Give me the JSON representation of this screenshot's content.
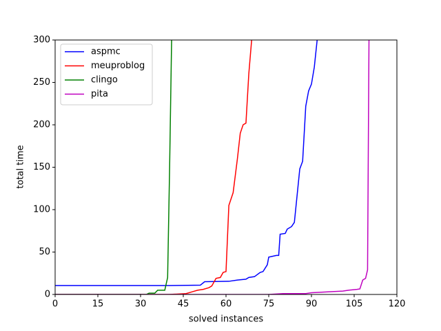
{
  "chart_data": {
    "type": "line",
    "xlabel": "solved instances",
    "ylabel": "total time",
    "xlim": [
      0,
      120
    ],
    "xticks": [
      0,
      15,
      30,
      45,
      60,
      75,
      90,
      105,
      120
    ],
    "ylim": [
      0,
      300
    ],
    "yticks": [
      0,
      50,
      100,
      150,
      200,
      250,
      300
    ],
    "legend": "upper left",
    "series": [
      {
        "name": "aspmc",
        "color": "#0000ff",
        "x": [
          0,
          20,
          40,
          51,
          52.5,
          61,
          64,
          67,
          68,
          70,
          72,
          73,
          74.5,
          75,
          77.7,
          78.5,
          79,
          80.8,
          81.5,
          83,
          84,
          85.9,
          86.9,
          88,
          89,
          90,
          91,
          92
        ],
        "values": [
          10.5,
          10.5,
          10.5,
          11,
          15,
          15.5,
          17,
          18,
          20,
          21,
          26,
          27,
          35,
          44,
          46,
          46,
          71,
          72,
          77,
          80,
          85,
          148,
          157,
          222,
          240,
          248,
          268,
          300
        ]
      },
      {
        "name": "meuproblog",
        "color": "#ff0000",
        "x": [
          0,
          40,
          46,
          48,
          50,
          52,
          54,
          55,
          56.5,
          58,
          59,
          60,
          61,
          62.5,
          64,
          65,
          66,
          67,
          68,
          69
        ],
        "values": [
          0,
          0,
          1,
          3,
          5,
          6,
          8,
          10,
          19,
          20,
          26,
          27,
          105,
          120,
          160,
          190,
          200,
          202,
          260,
          300
        ]
      },
      {
        "name": "clingo",
        "color": "#008000",
        "x": [
          0,
          32,
          33,
          35,
          36,
          38.5,
          39.5,
          40.2,
          40.9
        ],
        "values": [
          0,
          0,
          1.5,
          1.5,
          5,
          5,
          20,
          150,
          300
        ]
      },
      {
        "name": "pita",
        "color": "#bf00bf",
        "x": [
          0,
          75,
          80,
          88,
          90,
          98,
          101,
          103,
          106,
          107,
          108,
          109,
          109.7,
          110.2
        ],
        "values": [
          0,
          0,
          1,
          1,
          2,
          3.5,
          4,
          5,
          6,
          6.5,
          17,
          19,
          29,
          300
        ]
      }
    ]
  }
}
